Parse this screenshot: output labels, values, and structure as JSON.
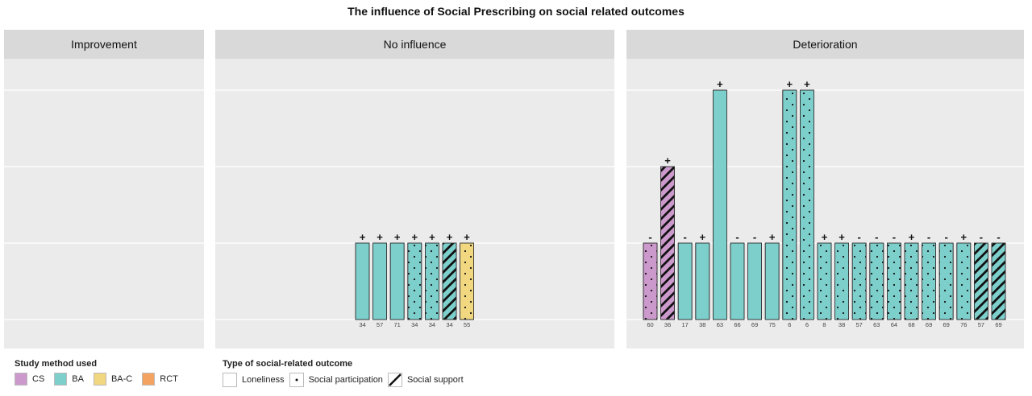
{
  "chart_data": {
    "type": "bar",
    "title": "The influence of Social Prescribing on social related outcomes",
    "ylim": [
      0,
      3.2
    ],
    "grid": true,
    "colors": {
      "CS": "#cc99cc",
      "BA": "#7dcfcc",
      "BA-C": "#f0d780",
      "RCT": "#f4a460"
    },
    "panels": [
      {
        "name": "Improvement",
        "bars": []
      },
      {
        "name": "No influence",
        "bars": [
          {
            "label": "34",
            "value": 1,
            "method": "BA",
            "outcome": "Loneliness",
            "sign": "+"
          },
          {
            "label": "57",
            "value": 1,
            "method": "BA",
            "outcome": "Loneliness",
            "sign": "+"
          },
          {
            "label": "71",
            "value": 1,
            "method": "BA",
            "outcome": "Loneliness",
            "sign": "+"
          },
          {
            "label": "34",
            "value": 1,
            "method": "BA",
            "outcome": "Social participation",
            "sign": "+"
          },
          {
            "label": "34",
            "value": 1,
            "method": "BA",
            "outcome": "Social participation",
            "sign": "+"
          },
          {
            "label": "34",
            "value": 1,
            "method": "BA",
            "outcome": "Social support",
            "sign": "+"
          },
          {
            "label": "55",
            "value": 1,
            "method": "BA-C",
            "outcome": "Social participation",
            "sign": "+"
          }
        ]
      },
      {
        "name": "Deterioration",
        "bars": [
          {
            "label": "60",
            "value": 1,
            "method": "CS",
            "outcome": "Social participation",
            "sign": "-"
          },
          {
            "label": "36",
            "value": 2,
            "method": "CS",
            "outcome": "Social support",
            "sign": "+"
          },
          {
            "label": "17",
            "value": 1,
            "method": "BA",
            "outcome": "Loneliness",
            "sign": "-"
          },
          {
            "label": "38",
            "value": 1,
            "method": "BA",
            "outcome": "Loneliness",
            "sign": "+"
          },
          {
            "label": "63",
            "value": 3,
            "method": "BA",
            "outcome": "Loneliness",
            "sign": "+"
          },
          {
            "label": "66",
            "value": 1,
            "method": "BA",
            "outcome": "Loneliness",
            "sign": "-"
          },
          {
            "label": "69",
            "value": 1,
            "method": "BA",
            "outcome": "Loneliness",
            "sign": "-"
          },
          {
            "label": "75",
            "value": 1,
            "method": "BA",
            "outcome": "Loneliness",
            "sign": "+"
          },
          {
            "label": "6",
            "value": 3,
            "method": "BA",
            "outcome": "Social participation",
            "sign": "+"
          },
          {
            "label": "6",
            "value": 3,
            "method": "BA",
            "outcome": "Social participation",
            "sign": "+"
          },
          {
            "label": "8",
            "value": 1,
            "method": "BA",
            "outcome": "Social participation",
            "sign": "+"
          },
          {
            "label": "38",
            "value": 1,
            "method": "BA",
            "outcome": "Social participation",
            "sign": "+"
          },
          {
            "label": "57",
            "value": 1,
            "method": "BA",
            "outcome": "Social participation",
            "sign": "-"
          },
          {
            "label": "63",
            "value": 1,
            "method": "BA",
            "outcome": "Social participation",
            "sign": "-"
          },
          {
            "label": "64",
            "value": 1,
            "method": "BA",
            "outcome": "Social participation",
            "sign": "-"
          },
          {
            "label": "68",
            "value": 1,
            "method": "BA",
            "outcome": "Social participation",
            "sign": "+"
          },
          {
            "label": "69",
            "value": 1,
            "method": "BA",
            "outcome": "Social participation",
            "sign": "-"
          },
          {
            "label": "69",
            "value": 1,
            "method": "BA",
            "outcome": "Social participation",
            "sign": "-"
          },
          {
            "label": "76",
            "value": 1,
            "method": "BA",
            "outcome": "Social participation",
            "sign": "+"
          },
          {
            "label": "57",
            "value": 1,
            "method": "BA",
            "outcome": "Social support",
            "sign": "-"
          },
          {
            "label": "69",
            "value": 1,
            "method": "BA",
            "outcome": "Social support",
            "sign": "-"
          }
        ]
      }
    ]
  },
  "legend": {
    "method_title": "Study method used",
    "methods": [
      {
        "key": "CS",
        "label": "CS"
      },
      {
        "key": "BA",
        "label": "BA"
      },
      {
        "key": "BA-C",
        "label": "BA-C"
      },
      {
        "key": "RCT",
        "label": "RCT"
      }
    ],
    "outcome_title": "Type of social-related outcome",
    "outcomes": [
      {
        "key": "Loneliness",
        "label": "Loneliness"
      },
      {
        "key": "Social participation",
        "label": "Social participation"
      },
      {
        "key": "Social support",
        "label": "Social support"
      }
    ]
  }
}
